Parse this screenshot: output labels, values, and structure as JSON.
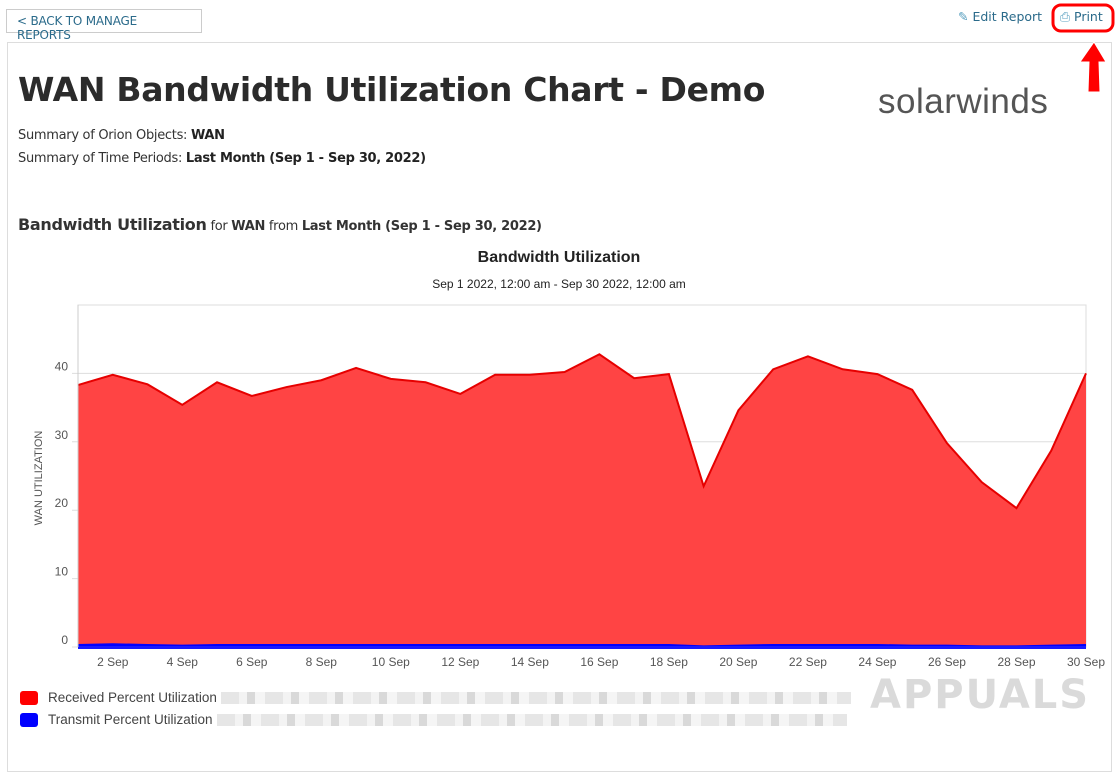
{
  "nav": {
    "back_label": "< BACK TO MANAGE REPORTS",
    "edit_label": "Edit Report",
    "print_label": "Print"
  },
  "report": {
    "title": "WAN Bandwidth Utilization Chart - Demo",
    "logo_text": "solarwinds",
    "summary_objects_label": "Summary of Orion Objects:",
    "summary_objects_value": "WAN",
    "summary_periods_label": "Summary of Time Periods:",
    "summary_periods_value": "Last Month (Sep 1 - Sep 30, 2022)",
    "section_title": "Bandwidth Utilization",
    "section_for": "for",
    "section_object": "WAN",
    "section_from": "from",
    "section_period": "Last Month (Sep 1 - Sep 30, 2022)"
  },
  "watermark": "APPUALS",
  "colors": {
    "received": "#ff4040",
    "received_line": "#e60000",
    "transmit": "#0000ff",
    "link": "#2a6a8a",
    "annotation": "#ff0000"
  },
  "chart_data": {
    "type": "area",
    "title": "Bandwidth Utilization",
    "subtitle": "Sep 1 2022, 12:00 am - Sep 30 2022, 12:00 am",
    "xlabel": "",
    "ylabel": "WAN UTILIZATION",
    "ylim": [
      0,
      50
    ],
    "yticks": [
      0,
      10,
      20,
      30,
      40
    ],
    "x": [
      1,
      2,
      3,
      4,
      5,
      6,
      7,
      8,
      9,
      10,
      11,
      12,
      13,
      14,
      15,
      16,
      17,
      18,
      19,
      20,
      21,
      22,
      23,
      24,
      25,
      26,
      27,
      28,
      29,
      30
    ],
    "xticks": [
      {
        "day": 2,
        "label": "2 Sep"
      },
      {
        "day": 4,
        "label": "4 Sep"
      },
      {
        "day": 6,
        "label": "6 Sep"
      },
      {
        "day": 8,
        "label": "8 Sep"
      },
      {
        "day": 10,
        "label": "10 Sep"
      },
      {
        "day": 12,
        "label": "12 Sep"
      },
      {
        "day": 14,
        "label": "14 Sep"
      },
      {
        "day": 16,
        "label": "16 Sep"
      },
      {
        "day": 18,
        "label": "18 Sep"
      },
      {
        "day": 20,
        "label": "20 Sep"
      },
      {
        "day": 22,
        "label": "22 Sep"
      },
      {
        "day": 24,
        "label": "24 Sep"
      },
      {
        "day": 26,
        "label": "26 Sep"
      },
      {
        "day": 28,
        "label": "28 Sep"
      },
      {
        "day": 30,
        "label": "30 Sep"
      }
    ],
    "grid": true,
    "legend": "bottom-left",
    "series": [
      {
        "name": "Received Percent Utilization",
        "values": [
          38.3,
          39.8,
          38.4,
          35.4,
          38.7,
          36.7,
          38.0,
          39.0,
          40.8,
          39.2,
          38.7,
          37.0,
          39.8,
          39.8,
          40.2,
          42.8,
          39.3,
          39.9,
          23.5,
          34.6,
          40.6,
          42.5,
          40.6,
          39.9,
          37.6,
          29.8,
          24.1,
          20.3,
          28.7,
          40.0
        ]
      },
      {
        "name": "Transmit Percent Utilization",
        "values": [
          0.3,
          0.4,
          0.3,
          0.2,
          0.3,
          0.3,
          0.3,
          0.3,
          0.3,
          0.3,
          0.3,
          0.3,
          0.3,
          0.3,
          0.3,
          0.3,
          0.3,
          0.3,
          0.1,
          0.2,
          0.3,
          0.3,
          0.3,
          0.3,
          0.2,
          0.2,
          0.1,
          0.1,
          0.2,
          0.3
        ]
      }
    ]
  }
}
